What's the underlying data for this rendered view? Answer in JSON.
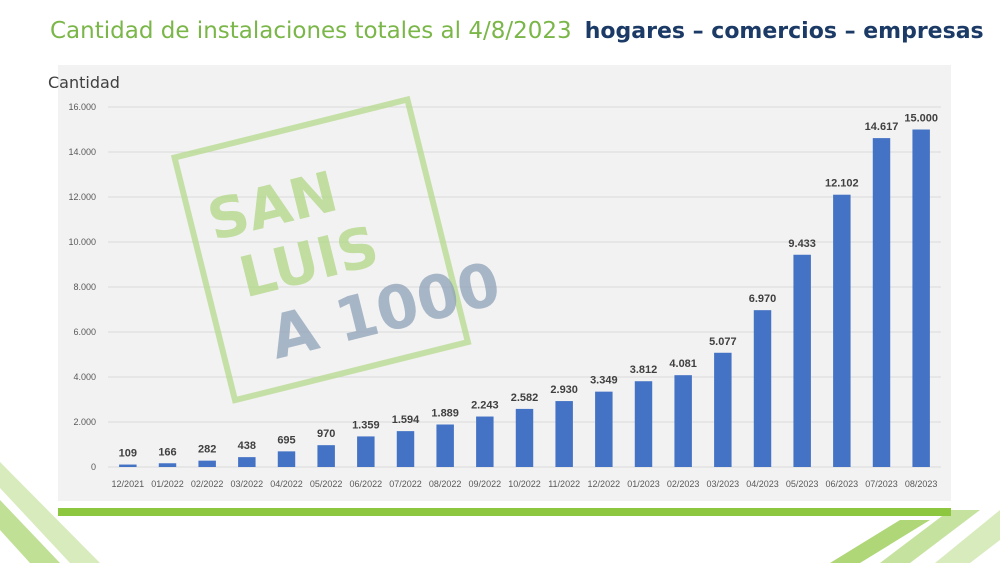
{
  "header": {
    "title_main": "Cantidad de instalaciones totales al 4/8/2023",
    "title_emphasis": "hogares – comercios – empresas"
  },
  "watermark": {
    "lines": [
      "SAN",
      "LUIS",
      "A 1000"
    ]
  },
  "colors": {
    "bar": "#4472c4",
    "title_green": "#7ab648",
    "title_navy": "#1b3a66",
    "accent_green": "#8dc63f"
  },
  "chart_data": {
    "type": "bar",
    "title": "",
    "ylabel": "Cantidad",
    "xlabel": "",
    "ylim": [
      0,
      16000
    ],
    "yticks": [
      0,
      2000,
      4000,
      6000,
      8000,
      10000,
      12000,
      14000,
      16000
    ],
    "ytick_labels": [
      "0",
      "2.000",
      "4.000",
      "6.000",
      "8.000",
      "10.000",
      "12.000",
      "14.000",
      "16.000"
    ],
    "categories": [
      "12/2021",
      "01/2022",
      "02/2022",
      "03/2022",
      "04/2022",
      "05/2022",
      "06/2022",
      "07/2022",
      "08/2022",
      "09/2022",
      "10/2022",
      "11/2022",
      "12/2022",
      "01/2023",
      "02/2023",
      "03/2023",
      "04/2023",
      "05/2023",
      "06/2023",
      "07/2023",
      "08/2023"
    ],
    "values": [
      109,
      166,
      282,
      438,
      695,
      970,
      1359,
      1594,
      1889,
      2243,
      2582,
      2930,
      3349,
      3812,
      4081,
      5077,
      6970,
      9433,
      12102,
      14617,
      15000
    ],
    "value_labels": [
      "109",
      "166",
      "282",
      "438",
      "695",
      "970",
      "1.359",
      "1.594",
      "1.889",
      "2.243",
      "2.582",
      "2.930",
      "3.349",
      "3.812",
      "4.081",
      "5.077",
      "6.970",
      "9.433",
      "12.102",
      "14.617",
      "15.000"
    ],
    "grid": true,
    "legend": "none"
  }
}
